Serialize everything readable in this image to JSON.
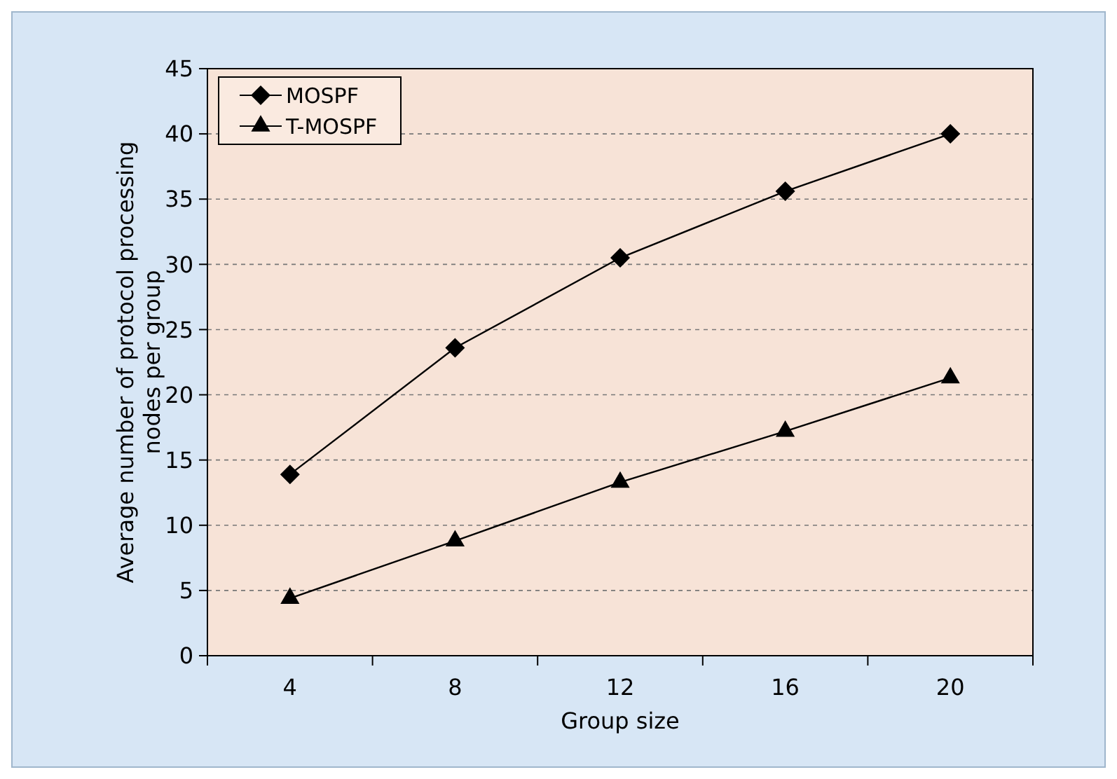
{
  "chart_data": {
    "type": "line",
    "xlabel": "Group size",
    "ylabel": "Average number of protocol processing nodes per group",
    "categories": [
      "4",
      "8",
      "12",
      "16",
      "20"
    ],
    "series": [
      {
        "name": "MOSPF",
        "color": "#000000",
        "marker": "diamond",
        "values": [
          13.9,
          23.6,
          30.5,
          35.6,
          40
        ]
      },
      {
        "name": "T-MOSPF",
        "color": "#000000",
        "marker": "triangle",
        "values": [
          4.4,
          8.8,
          13.3,
          17.2,
          21.3
        ]
      }
    ],
    "ylim": [
      0,
      45
    ],
    "yticks": [
      0,
      5,
      10,
      15,
      20,
      25,
      30,
      35,
      40,
      45
    ],
    "grid": "y",
    "legend": "top left"
  }
}
